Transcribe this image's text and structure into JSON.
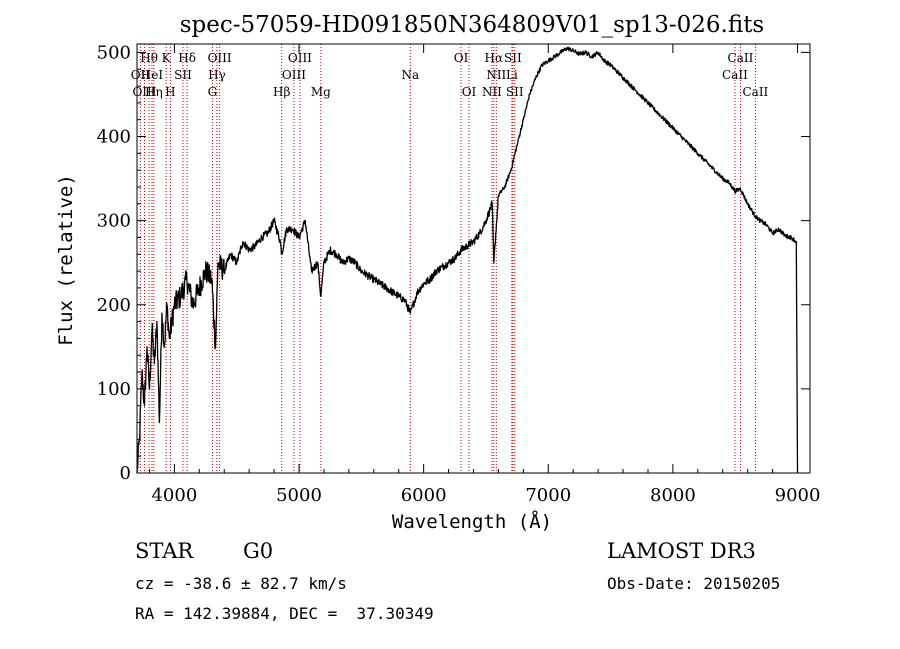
{
  "chart_data": {
    "type": "line",
    "title": "spec-57059-HD091850N364809V01_sp13-026.fits",
    "xlabel": "Wavelength (Å)",
    "ylabel": "Flux (relative)",
    "xlim": [
      3700,
      9100
    ],
    "ylim": [
      0,
      510
    ],
    "xticks": [
      4000,
      5000,
      6000,
      7000,
      8000,
      9000
    ],
    "yticks": [
      0,
      100,
      200,
      300,
      400,
      500
    ],
    "series": [
      {
        "name": "flux",
        "x": [
          3700,
          3720,
          3740,
          3760,
          3780,
          3800,
          3820,
          3840,
          3860,
          3880,
          3900,
          3920,
          3940,
          3960,
          3980,
          4000,
          4050,
          4100,
          4150,
          4200,
          4250,
          4300,
          4330,
          4350,
          4400,
          4450,
          4500,
          4550,
          4600,
          4650,
          4700,
          4750,
          4800,
          4850,
          4861,
          4900,
          4950,
          5000,
          5050,
          5100,
          5150,
          5175,
          5200,
          5250,
          5300,
          5350,
          5400,
          5450,
          5500,
          5550,
          5600,
          5650,
          5700,
          5750,
          5800,
          5850,
          5893,
          5950,
          6000,
          6050,
          6100,
          6150,
          6200,
          6250,
          6300,
          6350,
          6400,
          6450,
          6500,
          6550,
          6563,
          6600,
          6650,
          6700,
          6750,
          6800,
          6850,
          6900,
          6950,
          7000,
          7050,
          7100,
          7150,
          7200,
          7250,
          7300,
          7350,
          7400,
          7450,
          7500,
          7600,
          7700,
          7800,
          7900,
          8000,
          8100,
          8200,
          8300,
          8400,
          8450,
          8500,
          8542,
          8600,
          8662,
          8700,
          8750,
          8800,
          8850,
          8900,
          8950,
          8990,
          9000
        ],
        "y": [
          0,
          40,
          120,
          80,
          150,
          100,
          170,
          130,
          180,
          60,
          190,
          150,
          200,
          160,
          180,
          200,
          210,
          230,
          200,
          220,
          240,
          230,
          150,
          250,
          240,
          260,
          250,
          275,
          265,
          270,
          280,
          285,
          300,
          275,
          260,
          290,
          290,
          280,
          300,
          240,
          250,
          210,
          250,
          265,
          260,
          250,
          255,
          250,
          240,
          235,
          230,
          225,
          220,
          215,
          210,
          205,
          190,
          215,
          225,
          230,
          240,
          245,
          250,
          255,
          265,
          270,
          275,
          285,
          300,
          320,
          250,
          330,
          340,
          360,
          390,
          420,
          450,
          470,
          485,
          490,
          495,
          500,
          505,
          502,
          498,
          500,
          495,
          500,
          490,
          485,
          470,
          455,
          440,
          425,
          410,
          395,
          380,
          365,
          350,
          345,
          335,
          338,
          320,
          305,
          300,
          295,
          285,
          290,
          282,
          280,
          275,
          0
        ]
      }
    ],
    "line_markers": [
      {
        "label": "Hθ",
        "wl": 3797,
        "row": 1
      },
      {
        "label": "OII",
        "wl": 3727,
        "row": 2
      },
      {
        "label": "OIII",
        "wl": 3760,
        "row": 3
      },
      {
        "label": "HeI",
        "wl": 3820,
        "row": 2
      },
      {
        "label": "Hη",
        "wl": 3835,
        "row": 3
      },
      {
        "label": "K",
        "wl": 3934,
        "row": 1
      },
      {
        "label": "SII",
        "wl": 4069,
        "row": 2
      },
      {
        "label": "H",
        "wl": 3968,
        "row": 3
      },
      {
        "label": "Hδ",
        "wl": 4102,
        "row": 1
      },
      {
        "label": "OIII",
        "wl": 4363,
        "row": 1
      },
      {
        "label": "Hγ",
        "wl": 4341,
        "row": 2
      },
      {
        "label": "G",
        "wl": 4305,
        "row": 3
      },
      {
        "label": "Hβ",
        "wl": 4861,
        "row": 3
      },
      {
        "label": "OIII",
        "wl": 4959,
        "row": 2
      },
      {
        "label": "OIII",
        "wl": 5007,
        "row": 1
      },
      {
        "label": "Mg",
        "wl": 5175,
        "row": 3
      },
      {
        "label": "Na",
        "wl": 5893,
        "row": 2
      },
      {
        "label": "OI",
        "wl": 6300,
        "row": 1
      },
      {
        "label": "OI",
        "wl": 6364,
        "row": 3
      },
      {
        "label": "Hα",
        "wl": 6563,
        "row": 1
      },
      {
        "label": "NII",
        "wl": 6583,
        "row": 2
      },
      {
        "label": "NII",
        "wl": 6548,
        "row": 3
      },
      {
        "label": "SII",
        "wl": 6716,
        "row": 1
      },
      {
        "label": "Li",
        "wl": 6708,
        "row": 2
      },
      {
        "label": "SII",
        "wl": 6731,
        "row": 3
      },
      {
        "label": "CaII",
        "wl": 8542,
        "row": 1
      },
      {
        "label": "CaII",
        "wl": 8498,
        "row": 2
      },
      {
        "label": "CaII",
        "wl": 8662,
        "row": 3
      }
    ]
  },
  "info": {
    "object_type": "STAR",
    "subclass": "G0",
    "survey": "LAMOST DR3",
    "cz": "cz = -38.6 ± 82.7 km/s",
    "obs_date": "Obs-Date: 20150205",
    "coords": "RA = 142.39884, DEC =  37.30349"
  }
}
